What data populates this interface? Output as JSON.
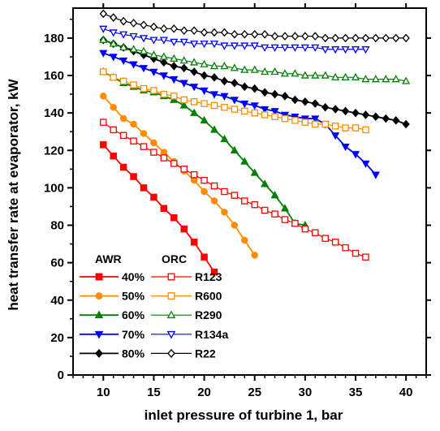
{
  "chart_data": {
    "type": "line",
    "xlabel": "inlet pressure of turbine 1, bar",
    "ylabel": "heat transfer rate at evaporator, kW",
    "xlim": [
      7,
      42
    ],
    "ylim": [
      0,
      196
    ],
    "xticks": [
      10,
      15,
      20,
      25,
      30,
      35,
      40
    ],
    "yticks": [
      0,
      20,
      40,
      60,
      80,
      100,
      120,
      140,
      160,
      180
    ],
    "legend": {
      "position": "bottom-left",
      "group_titles": [
        "AWR",
        "ORC"
      ]
    },
    "series": [
      {
        "name": "40%",
        "group": "AWR",
        "color": "#ff0000",
        "marker": "square",
        "filled": true,
        "x": [
          10,
          11,
          12,
          13,
          14,
          15,
          16,
          17,
          18,
          19,
          20,
          21
        ],
        "y": [
          123,
          117,
          111,
          106,
          100,
          95,
          89,
          84,
          78,
          71,
          63,
          55
        ]
      },
      {
        "name": "50%",
        "group": "AWR",
        "color": "#ff8c00",
        "marker": "circle",
        "filled": true,
        "x": [
          10,
          11,
          12,
          13,
          14,
          15,
          16,
          17,
          18,
          19,
          20,
          21,
          22,
          23,
          24,
          25
        ],
        "y": [
          149,
          143,
          137,
          134,
          129,
          124,
          119,
          114,
          109,
          104,
          98,
          93,
          87,
          80,
          72,
          64
        ]
      },
      {
        "name": "60%",
        "group": "AWR",
        "color": "#008000",
        "marker": "triangle-up",
        "filled": true,
        "x": [
          10,
          11,
          12,
          13,
          14,
          15,
          16,
          17,
          18,
          19,
          20,
          21,
          22,
          23,
          24,
          25,
          26,
          27,
          28,
          29,
          30
        ],
        "y": [
          162,
          159,
          156,
          154,
          152,
          151,
          149,
          147,
          144,
          140,
          136,
          131,
          126,
          120,
          114,
          108,
          102,
          96,
          89,
          81,
          80
        ]
      },
      {
        "name": "70%",
        "group": "AWR",
        "color": "#0000ff",
        "marker": "triangle-down",
        "filled": true,
        "x": [
          10,
          11,
          12,
          13,
          14,
          15,
          16,
          17,
          18,
          19,
          20,
          21,
          22,
          23,
          24,
          25,
          26,
          27,
          28,
          29,
          30,
          31,
          32,
          33,
          34,
          35,
          36,
          37
        ],
        "y": [
          172,
          170,
          168,
          166,
          164,
          162,
          160,
          158,
          156,
          154,
          152,
          150,
          149,
          147,
          145,
          144,
          142,
          141,
          139,
          138,
          137,
          137,
          134,
          128,
          122,
          118,
          113,
          107
        ]
      },
      {
        "name": "80%",
        "group": "AWR",
        "color": "#000000",
        "marker": "diamond",
        "filled": true,
        "x": [
          10,
          11,
          12,
          13,
          14,
          15,
          16,
          17,
          18,
          19,
          20,
          21,
          22,
          23,
          24,
          25,
          26,
          27,
          28,
          29,
          30,
          31,
          32,
          33,
          34,
          35,
          36,
          37,
          38,
          39,
          40
        ],
        "y": [
          179,
          177,
          175,
          173,
          171,
          169,
          167,
          165,
          164,
          162,
          160,
          159,
          157,
          156,
          154,
          153,
          151,
          150,
          149,
          147,
          146,
          145,
          143,
          142,
          141,
          140,
          139,
          138,
          137,
          136,
          134
        ]
      },
      {
        "name": "R123",
        "group": "ORC",
        "color": "#ff0000",
        "marker": "square",
        "filled": false,
        "x": [
          10,
          11,
          12,
          13,
          14,
          15,
          16,
          17,
          18,
          19,
          20,
          21,
          22,
          23,
          24,
          25,
          26,
          27,
          28,
          29,
          30,
          31,
          32,
          33,
          34,
          35,
          36
        ],
        "y": [
          135,
          131,
          128,
          125,
          122,
          119,
          116,
          113,
          110,
          107,
          104,
          101,
          98,
          96,
          93,
          91,
          88,
          86,
          83,
          81,
          78,
          76,
          73,
          71,
          68,
          65,
          63
        ]
      },
      {
        "name": "R600",
        "group": "ORC",
        "color": "#ff8c00",
        "marker": "square",
        "filled": false,
        "x": [
          10,
          11,
          12,
          13,
          14,
          15,
          16,
          17,
          18,
          19,
          20,
          21,
          22,
          23,
          24,
          25,
          26,
          27,
          28,
          29,
          30,
          31,
          32,
          33,
          34,
          35,
          36
        ],
        "y": [
          162,
          159,
          157,
          155,
          153,
          152,
          150,
          149,
          147,
          146,
          145,
          144,
          143,
          142,
          141,
          140,
          139,
          138,
          137,
          136,
          135,
          134,
          134,
          133,
          132,
          132,
          131
        ]
      },
      {
        "name": "R290",
        "group": "ORC",
        "color": "#008000",
        "marker": "triangle-up",
        "filled": false,
        "x": [
          10,
          11,
          12,
          13,
          14,
          15,
          16,
          17,
          18,
          19,
          20,
          21,
          22,
          23,
          24,
          25,
          26,
          27,
          28,
          29,
          30,
          31,
          32,
          33,
          34,
          35,
          36,
          37,
          38,
          39,
          40
        ],
        "y": [
          179,
          177,
          175,
          174,
          173,
          171,
          170,
          169,
          168,
          167,
          166,
          165,
          165,
          164,
          163,
          163,
          162,
          162,
          161,
          161,
          160,
          160,
          160,
          159,
          159,
          159,
          158,
          158,
          158,
          158,
          157
        ]
      },
      {
        "name": "R134a",
        "group": "ORC",
        "color": "#0000ff",
        "marker": "triangle-down",
        "filled": false,
        "x": [
          10,
          11,
          12,
          13,
          14,
          15,
          16,
          17,
          18,
          19,
          20,
          21,
          22,
          23,
          24,
          25,
          26,
          27,
          28,
          29,
          30,
          31,
          32,
          33,
          34,
          35,
          36
        ],
        "y": [
          185,
          183,
          182,
          181,
          180,
          179,
          179,
          178,
          178,
          177,
          177,
          177,
          176,
          176,
          176,
          176,
          175,
          175,
          175,
          175,
          175,
          175,
          174,
          174,
          174,
          174,
          174
        ]
      },
      {
        "name": "R22",
        "group": "ORC",
        "color": "#000000",
        "marker": "diamond",
        "filled": false,
        "x": [
          10,
          11,
          12,
          13,
          14,
          15,
          16,
          17,
          18,
          19,
          20,
          21,
          22,
          23,
          24,
          25,
          26,
          27,
          28,
          29,
          30,
          31,
          32,
          33,
          34,
          35,
          36,
          37,
          38,
          39,
          40
        ],
        "y": [
          193,
          191,
          189,
          188,
          187,
          186,
          185,
          185,
          184,
          184,
          183,
          183,
          183,
          182,
          182,
          182,
          182,
          181,
          181,
          181,
          181,
          181,
          180,
          180,
          180,
          180,
          180,
          180,
          180,
          180,
          180
        ]
      }
    ]
  }
}
